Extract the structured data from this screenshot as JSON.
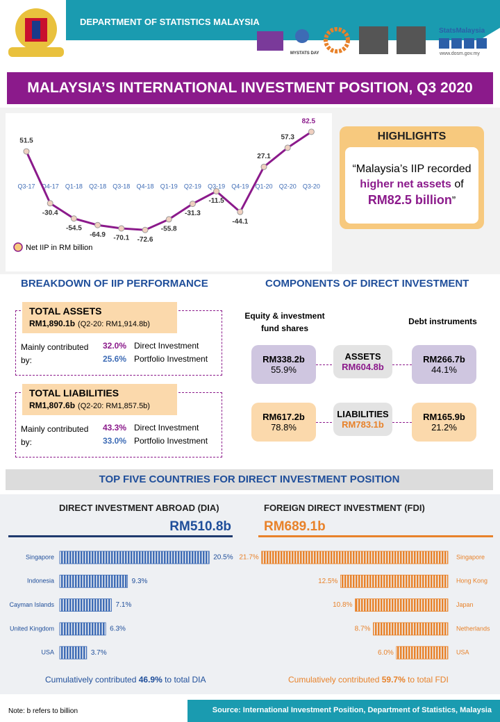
{
  "header": {
    "org": "DEPARTMENT OF STATISTICS MALAYSIA",
    "event": "MYSTATS DAY",
    "brand": "StatsMalaysia",
    "url": "www.dosm.gov.my"
  },
  "title": "MALAYSIA’S INTERNATIONAL INVESTMENT POSITION, Q3 2020",
  "chart_data": [
    {
      "type": "line",
      "categories": [
        "Q3-17",
        "Q4-17",
        "Q1-18",
        "Q2-18",
        "Q3-18",
        "Q4-18",
        "Q1-19",
        "Q2-19",
        "Q3-19",
        "Q4-19",
        "Q1-20",
        "Q2-20",
        "Q3-20"
      ],
      "series": [
        {
          "name": "Net IIP in RM billion",
          "color": "#8b1a8b",
          "values": [
            51.5,
            -30.4,
            -54.5,
            -64.9,
            -70.1,
            -72.6,
            -55.8,
            -31.3,
            -11.5,
            -44.1,
            27.1,
            57.3,
            82.5
          ]
        }
      ],
      "ylim": [
        -80,
        90
      ]
    },
    {
      "type": "bar",
      "title": "DIRECT INVESTMENT ABROAD (DIA)",
      "total": "RM510.8b",
      "bar_direction": "right",
      "categories": [
        "Singapore",
        "Indonesia",
        "Cayman Islands",
        "United Kingdom",
        "USA"
      ],
      "values": [
        20.5,
        9.3,
        7.1,
        6.3,
        3.7
      ],
      "value_labels": [
        "20.5%",
        "9.3%",
        "7.1%",
        "6.3%",
        "3.7%"
      ],
      "color": "#3d6bb5",
      "xlim": [
        0,
        22
      ],
      "note": [
        "Cumulatively contributed ",
        "46.9%",
        " to total DIA"
      ]
    },
    {
      "type": "bar",
      "title": "FOREIGN DIRECT INVESTMENT (FDI)",
      "total": "RM689.1b",
      "bar_direction": "left",
      "categories": [
        "Singapore",
        "Hong Kong",
        "Japan",
        "Netherlands",
        "USA"
      ],
      "values": [
        21.7,
        12.5,
        10.8,
        8.7,
        6.0
      ],
      "value_labels": [
        "21.7%",
        "12.5%",
        "10.8%",
        "8.7%",
        "6.0%"
      ],
      "color": "#e8822a",
      "xlim": [
        0,
        22
      ],
      "note": [
        "Cumulatively contributed ",
        "59.7%",
        " to total FDI"
      ]
    }
  ],
  "highlights": {
    "title": "HIGHLIGHTS",
    "text": [
      "“Malaysia’s IIP recorded ",
      "higher net assets",
      " of ",
      "RM82.5 billion",
      "”"
    ]
  },
  "breakdown": {
    "title": "BREAKDOWN OF IIP PERFORMANCE",
    "items": [
      {
        "label": "TOTAL ASSETS",
        "value": "RM1,890.1b",
        "previous": "(Q2-20: RM1,914.8b)",
        "lead": "Mainly contributed by:",
        "parts": [
          [
            "32.0%",
            "Direct Investment"
          ],
          [
            "25.6%",
            "Portfolio Investment"
          ]
        ]
      },
      {
        "label": "TOTAL LIABILITIES",
        "value": "RM1,807.6b",
        "previous": "(Q2-20: RM1,857.5b)",
        "lead": "Mainly contributed by:",
        "parts": [
          [
            "43.3%",
            "Direct Investment"
          ],
          [
            "33.0%",
            "Portfolio Investment"
          ]
        ]
      }
    ]
  },
  "components": {
    "title": "COMPONENTS OF DIRECT INVESTMENT",
    "left_header": "Equity & investment fund shares",
    "right_header": "Debt instruments",
    "rows": [
      {
        "label": "ASSETS",
        "total": "RM604.8b",
        "left": [
          "RM338.2b",
          "55.9%"
        ],
        "right": [
          "RM266.7b",
          "44.1%"
        ]
      },
      {
        "label": "LIABILITIES",
        "total": "RM783.1b",
        "left": [
          "RM617.2b",
          "78.8%"
        ],
        "right": [
          "RM165.9b",
          "21.2%"
        ]
      }
    ]
  },
  "section_title": "TOP FIVE COUNTRIES FOR DIRECT INVESTMENT POSITION",
  "footer": {
    "note": "Note: b refers to billion",
    "source": "Source: International Investment Position, Department of Statistics, Malaysia"
  }
}
